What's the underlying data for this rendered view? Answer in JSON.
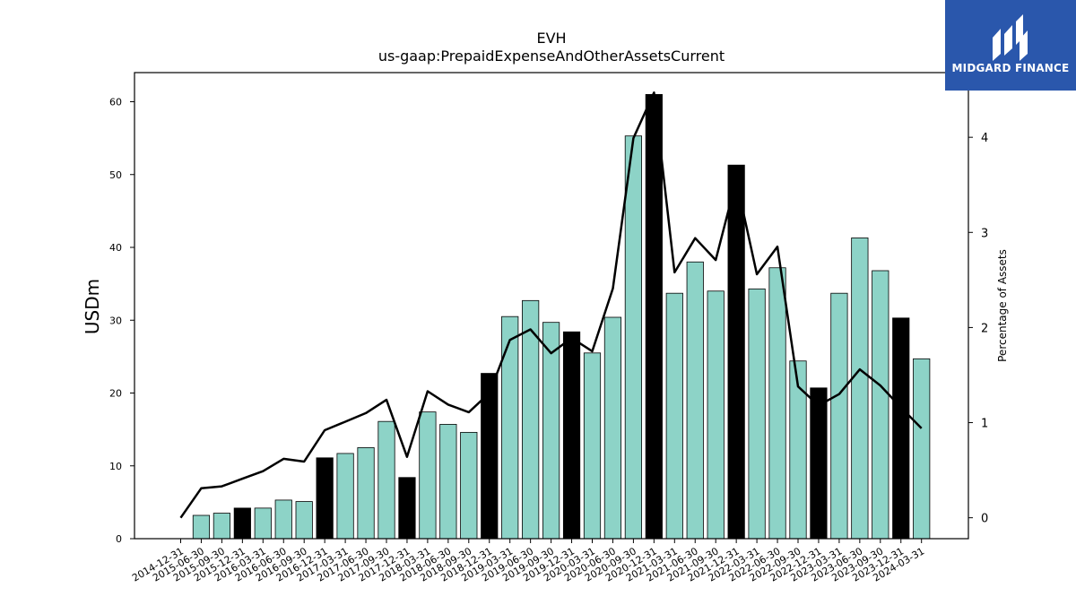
{
  "chart_data": {
    "type": "bar",
    "title": "EVH",
    "subtitle": "us-gaap:PrepaidExpenseAndOtherAssetsCurrent",
    "ylabel": "USDm",
    "y2label": "Percentage of Assets",
    "ylim": [
      0,
      64
    ],
    "y2lim": [
      -0.22,
      4.68
    ],
    "yticks": [
      0,
      10,
      20,
      30,
      40,
      50,
      60
    ],
    "y2ticks": [
      0,
      1,
      2,
      3,
      4
    ],
    "categories": [
      "2014-12-31",
      "2015-06-30",
      "2015-09-30",
      "2015-12-31",
      "2016-03-31",
      "2016-06-30",
      "2016-09-30",
      "2016-12-31",
      "2017-03-31",
      "2017-06-30",
      "2017-09-30",
      "2017-12-31",
      "2018-03-31",
      "2018-06-30",
      "2018-09-30",
      "2018-12-31",
      "2019-03-31",
      "2019-06-30",
      "2019-09-30",
      "2019-12-31",
      "2020-03-31",
      "2020-06-30",
      "2020-09-30",
      "2020-12-31",
      "2021-03-31",
      "2021-06-30",
      "2021-09-30",
      "2021-12-31",
      "2022-03-31",
      "2022-06-30",
      "2022-09-30",
      "2022-12-31",
      "2023-03-31",
      "2023-06-30",
      "2023-09-30",
      "2023-12-31",
      "2024-03-31"
    ],
    "values": [
      0,
      3.2,
      3.5,
      4.2,
      4.2,
      5.3,
      5.1,
      11.1,
      11.7,
      12.5,
      16.1,
      8.4,
      17.4,
      15.7,
      14.6,
      22.7,
      30.5,
      32.7,
      29.7,
      28.4,
      25.5,
      30.4,
      55.3,
      61.0,
      33.7,
      38.0,
      34.0,
      51.3,
      34.3,
      37.2,
      24.4,
      20.7,
      33.7,
      41.3,
      36.8,
      30.3,
      24.7
    ],
    "highlight": [
      false,
      false,
      false,
      true,
      false,
      false,
      false,
      true,
      false,
      false,
      false,
      true,
      false,
      false,
      false,
      true,
      false,
      false,
      false,
      true,
      false,
      false,
      false,
      true,
      false,
      false,
      false,
      true,
      false,
      false,
      false,
      true,
      false,
      false,
      false,
      true,
      false
    ],
    "percentage_of_assets": [
      0.0,
      0.31,
      0.33,
      0.41,
      0.49,
      0.62,
      0.59,
      0.92,
      1.01,
      1.1,
      1.24,
      0.64,
      1.33,
      1.19,
      1.11,
      1.31,
      1.87,
      1.98,
      1.73,
      1.89,
      1.75,
      2.41,
      3.99,
      4.47,
      2.58,
      2.94,
      2.71,
      3.55,
      2.56,
      2.85,
      1.38,
      1.18,
      1.3,
      1.56,
      1.39,
      1.16,
      0.94
    ],
    "colors": {
      "bar": "#8dd3c7",
      "highlight": "#000000",
      "line": "#000000",
      "edge": "#000000"
    },
    "grid": false
  },
  "logo": {
    "text": "MIDGARD FINANCE",
    "background": "#2a57ac"
  }
}
